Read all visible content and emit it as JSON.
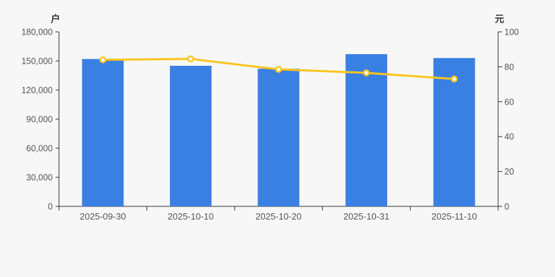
{
  "chart_data": {
    "type": "bar+line",
    "title": "",
    "categories": [
      "2025-09-30",
      "2025-10-10",
      "2025-10-20",
      "2025-10-31",
      "2025-11-10"
    ],
    "series": [
      {
        "type": "bar",
        "y_axis": "left",
        "values": [
          152000,
          145000,
          142000,
          157000,
          153000
        ],
        "color": "#3a80e2"
      },
      {
        "type": "line",
        "y_axis": "right",
        "values": [
          84,
          84.5,
          78.5,
          76.5,
          73
        ],
        "color": "#fbc41d",
        "marker": "circle",
        "marker_fill": "#ffffff"
      }
    ],
    "left_axis": {
      "label": "户",
      "min": 0,
      "max": 180000,
      "tick_step": 30000
    },
    "right_axis": {
      "label": "元",
      "min": 0,
      "max": 100,
      "tick_step": 20
    },
    "grid": false,
    "legend": false,
    "background_color": "#f7f7f7",
    "axis_line_color": "#333333",
    "tick_label_color": "#555555"
  }
}
